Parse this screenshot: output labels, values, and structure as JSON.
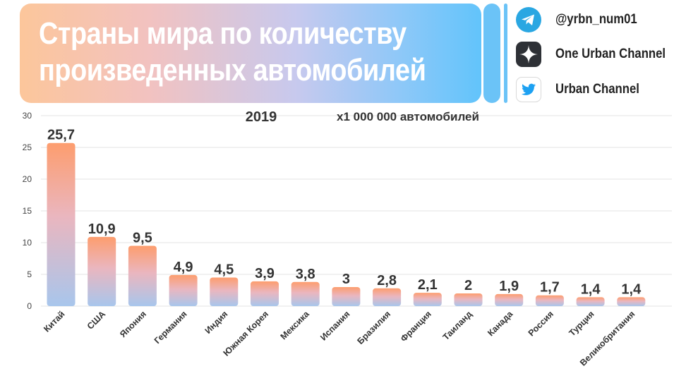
{
  "header": {
    "title_line1": "Страны мира по количеству",
    "title_line2": "произведенных автомобилей"
  },
  "social": {
    "telegram": "@yrbn_num01",
    "zen": "One Urban Channel",
    "twitter": "Urban Channel"
  },
  "colors": {
    "bar_top": "#fd9d6e",
    "bar_mid": "#eab6bf",
    "bar_bottom": "#a8c6ec",
    "accent_blue": "#6bc3f7"
  },
  "chart_data": {
    "type": "bar",
    "title": "2019",
    "subtitle": "x1 000 000 автомобилей",
    "categories": [
      "Китай",
      "США",
      "Япония",
      "Германия",
      "Индия",
      "Южная Корея",
      "Мексика",
      "Испания",
      "Бразилия",
      "Франция",
      "Таиланд",
      "Канада",
      "Россия",
      "Турция",
      "Великобритания"
    ],
    "values": [
      25.7,
      10.9,
      9.5,
      4.9,
      4.5,
      3.9,
      3.8,
      3,
      2.8,
      2.1,
      2,
      1.9,
      1.7,
      1.4,
      1.4
    ],
    "value_labels": [
      "25,7",
      "10,9",
      "9,5",
      "4,9",
      "4,5",
      "3,9",
      "3,8",
      "3",
      "2,8",
      "2,1",
      "2",
      "1,9",
      "1,7",
      "1,4",
      "1,4"
    ],
    "yticks": [
      0,
      5,
      10,
      15,
      20,
      25,
      30
    ],
    "ylim": [
      0,
      30
    ],
    "grid": true,
    "xlabel": "",
    "ylabel": ""
  }
}
